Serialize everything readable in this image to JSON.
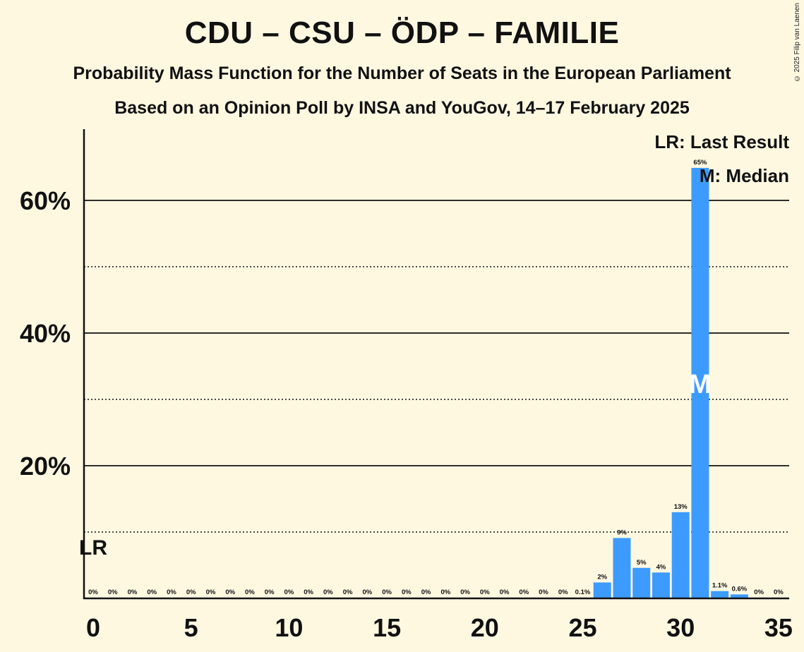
{
  "title": "CDU – CSU – ÖDP – FAMILIE",
  "subtitle1": "Probability Mass Function for the Number of Seats in the European Parliament",
  "subtitle2": "Based on an Opinion Poll by INSA and YouGov, 14–17 February 2025",
  "copyright": "© 2025 Filip van Laenen",
  "legend": {
    "last_result": "LR: Last Result",
    "median": "M: Median"
  },
  "markers": {
    "last_result_label": "LR",
    "last_result_seat": 0,
    "median_label": "M",
    "median_seat": 31
  },
  "colors": {
    "bar": "#3D9BFF",
    "background": "#FFF8E1"
  },
  "chart_data": {
    "type": "bar",
    "xlim": [
      0,
      35
    ],
    "ylim": [
      0,
      70
    ],
    "y_solid_gridlines": [
      20,
      40,
      60
    ],
    "y_dotted_gridlines": [
      10,
      30,
      50
    ],
    "y_tick_labels": [
      "20%",
      "40%",
      "60%"
    ],
    "x_tick_labels": [
      "0",
      "5",
      "10",
      "15",
      "20",
      "25",
      "30",
      "35"
    ],
    "x": [
      0,
      1,
      2,
      3,
      4,
      5,
      6,
      7,
      8,
      9,
      10,
      11,
      12,
      13,
      14,
      15,
      16,
      17,
      18,
      19,
      20,
      21,
      22,
      23,
      24,
      25,
      26,
      27,
      28,
      29,
      30,
      31,
      32,
      33,
      34,
      35
    ],
    "values": [
      0,
      0,
      0,
      0,
      0,
      0,
      0,
      0,
      0,
      0,
      0,
      0,
      0,
      0,
      0,
      0,
      0,
      0,
      0,
      0,
      0,
      0,
      0,
      0,
      0,
      0.1,
      2.4,
      9.1,
      4.6,
      3.9,
      13.0,
      64.9,
      1.1,
      0.6,
      0,
      0
    ],
    "labels": [
      "0%",
      "0%",
      "0%",
      "0%",
      "0%",
      "0%",
      "0%",
      "0%",
      "0%",
      "0%",
      "0%",
      "0%",
      "0%",
      "0%",
      "0%",
      "0%",
      "0%",
      "0%",
      "0%",
      "0%",
      "0%",
      "0%",
      "0%",
      "0%",
      "0%",
      "0.1%",
      "2%",
      "9%",
      "5%",
      "4%",
      "13%",
      "65%",
      "1.1%",
      "0.6%",
      "0%",
      "0%"
    ]
  }
}
